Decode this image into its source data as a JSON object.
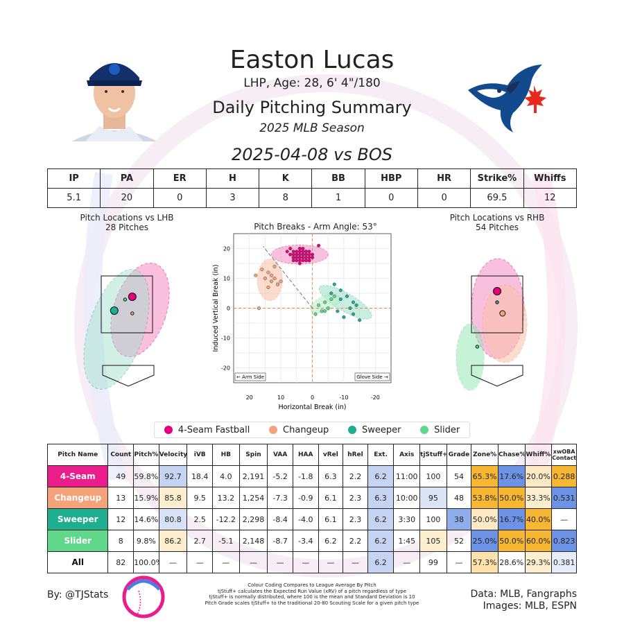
{
  "header": {
    "name": "Easton Lucas",
    "bio": "LHP, Age: 28, 6' 4\"/180",
    "title": "Daily Pitching Summary",
    "season": "2025 MLB Season",
    "game": "2025-04-08 vs BOS"
  },
  "summary": {
    "headers": [
      "IP",
      "PA",
      "ER",
      "H",
      "K",
      "BB",
      "HBP",
      "HR",
      "Strike%",
      "Whiffs"
    ],
    "values": [
      "5.1",
      "20",
      "0",
      "3",
      "8",
      "1",
      "0",
      "0",
      "69.5",
      "12"
    ]
  },
  "location_lhb": {
    "title": "Pitch Locations vs LHB",
    "subtitle": "28 Pitches"
  },
  "location_rhb": {
    "title": "Pitch Locations vs RHB",
    "subtitle": "54 Pitches"
  },
  "legend": {
    "items": [
      {
        "label": "4-Seam Fastball",
        "color": "#e6007e"
      },
      {
        "label": "Changeup",
        "color": "#f4a27a"
      },
      {
        "label": "Sweeper",
        "color": "#1fae8f"
      },
      {
        "label": "Slider",
        "color": "#5fd88a"
      }
    ]
  },
  "pitch_table": {
    "headers": [
      "Pitch Name",
      "Count",
      "Pitch%",
      "Velocity",
      "iVB",
      "HB",
      "Spin",
      "VAA",
      "HAA",
      "vRel",
      "hRel",
      "Ext.",
      "Axis",
      "tjStuff+",
      "Grade",
      "Zone%",
      "Chase%",
      "Whiff%",
      "xwOBA Contact"
    ],
    "rows": [
      {
        "name": "4-Seam",
        "name_color": "#e91e8c",
        "cells": [
          "49",
          "59.8%",
          "92.7",
          "18.4",
          "4.0",
          "2,191",
          "-5.2",
          "-1.8",
          "6.3",
          "2.2",
          "6.2",
          "11:00",
          "100",
          "54",
          "65.3%",
          "17.6%",
          "20.0%",
          "0.288"
        ],
        "fills": [
          "",
          "",
          "#c5d4f2",
          "",
          "",
          "",
          "",
          "",
          "",
          "",
          "#c5d4f2",
          "",
          "",
          "",
          "#f7b733",
          "#6c93e6",
          "#fde9c3",
          "#f7b733"
        ]
      },
      {
        "name": "Changeup",
        "name_color": "#f4a27a",
        "cells": [
          "13",
          "15.9%",
          "85.8",
          "9.5",
          "13.2",
          "1,254",
          "-7.3",
          "-0.9",
          "6.1",
          "2.3",
          "6.3",
          "10:00",
          "95",
          "48",
          "53.8%",
          "50.0%",
          "33.3%",
          "0.531"
        ],
        "fills": [
          "",
          "",
          "#fdeecf",
          "",
          "",
          "",
          "",
          "",
          "",
          "",
          "#c5d4f2",
          "",
          "#dbe4f7",
          "",
          "#f7b733",
          "#f7b733",
          "#fdeecf",
          "#6c93e6"
        ]
      },
      {
        "name": "Sweeper",
        "name_color": "#1fae8f",
        "cells": [
          "12",
          "14.6%",
          "80.8",
          "2.5",
          "-12.2",
          "2,298",
          "-8.4",
          "-4.0",
          "6.1",
          "2.3",
          "6.2",
          "3:30",
          "100",
          "38",
          "50.0%",
          "16.7%",
          "40.0%",
          "—"
        ],
        "fills": [
          "",
          "",
          "#d8e2f6",
          "",
          "",
          "",
          "",
          "",
          "",
          "",
          "#c5d4f2",
          "",
          "",
          "#8fadea",
          "#fde9c3",
          "#6c93e6",
          "#f7b733",
          ""
        ]
      },
      {
        "name": "Slider",
        "name_color": "#5fd88a",
        "cells": [
          "8",
          "9.8%",
          "86.2",
          "2.7",
          "-5.1",
          "2,148",
          "-8.7",
          "-3.4",
          "6.2",
          "2.2",
          "6.2",
          "1:45",
          "105",
          "52",
          "25.0%",
          "50.0%",
          "60.0%",
          "0.823"
        ],
        "fills": [
          "",
          "",
          "#fdeecf",
          "",
          "",
          "",
          "",
          "",
          "",
          "",
          "#c5d4f2",
          "",
          "#fdeecf",
          "",
          "#6c93e6",
          "#f7b733",
          "#f7b733",
          "#6c93e6"
        ]
      },
      {
        "name": "All",
        "name_color": "#ffffff",
        "cells": [
          "82",
          "100.0%",
          "—",
          "—",
          "—",
          "—",
          "—",
          "—",
          "—",
          "—",
          "6.2",
          "—",
          "99",
          "—",
          "57.3%",
          "28.6%",
          "29.3%",
          "0.381"
        ],
        "fills": [
          "",
          "",
          "",
          "",
          "",
          "",
          "",
          "",
          "",
          "",
          "#c5d4f2",
          "",
          "",
          "",
          "#fde2ac",
          "",
          "#fdeecf",
          "#e6ecf9"
        ]
      }
    ]
  },
  "footer": {
    "by": "By: @TJStats",
    "notes": [
      "Colour Coding Compares to League Average By Pitch",
      "tjStuff+ calculates the Expected Run Value (xRV) of a pitch regardless of type",
      "tjStuff+ is normally distributed, where 100 is the mean and Standard Deviation is 10",
      "Pitch Grade scales tjStuff+ to the traditional 20-80 Scouting Scale for a given pitch type"
    ],
    "data_source": "Data: MLB, Fangraphs",
    "images_source": "Images: MLB, ESPN"
  },
  "chart_data": {
    "type": "scatter",
    "title": "Pitch Breaks - Arm Angle: 53°",
    "xlabel": "Horizontal Break (in)",
    "ylabel": "Induced Vertical Break (in)",
    "xlim": [
      25,
      -25
    ],
    "ylim": [
      -25,
      25
    ],
    "x_ticks": [
      20,
      10,
      0,
      -10,
      -20
    ],
    "y_ticks": [
      20,
      10,
      0,
      -10,
      -20
    ],
    "annotations": {
      "left": "← Arm Side",
      "right": "Glove Side →"
    },
    "arm_angle": 53,
    "series": [
      {
        "name": "4-Seam Fastball",
        "color": "#e6007e",
        "x": [
          4,
          5,
          1,
          3,
          6,
          2,
          4,
          7,
          5,
          3,
          1,
          0,
          6,
          8,
          4,
          2,
          5,
          3,
          7,
          1,
          4,
          6,
          2,
          5,
          3,
          0,
          4,
          6,
          2,
          3,
          5,
          1,
          4,
          7,
          3,
          5,
          2,
          4,
          6,
          3,
          1,
          5,
          4,
          3,
          6,
          2,
          4,
          5,
          -2
        ],
        "y": [
          19,
          18,
          17,
          18,
          19,
          16,
          17,
          20,
          18,
          19,
          16,
          18,
          17,
          19,
          20,
          18,
          17,
          16,
          18,
          19,
          18,
          17,
          19,
          16,
          18,
          17,
          20,
          18,
          17,
          19,
          18,
          16,
          17,
          18,
          20,
          19,
          18,
          16,
          17,
          19,
          18,
          17,
          18,
          17,
          16,
          19,
          15,
          18,
          21
        ]
      },
      {
        "name": "Changeup",
        "color": "#f4a27a",
        "x": [
          18,
          14,
          12,
          11,
          13,
          14,
          10,
          12,
          13,
          15,
          11,
          16,
          17
        ],
        "y": [
          11,
          12,
          10,
          8,
          9,
          7,
          9,
          14,
          11,
          10,
          8,
          13,
          0
        ]
      },
      {
        "name": "Sweeper",
        "color": "#1fae8f",
        "x": [
          -6,
          -11,
          -9,
          -13,
          -12,
          -14,
          -8,
          -10,
          -13,
          -15,
          -9,
          -7
        ],
        "y": [
          5,
          4,
          3,
          2,
          0,
          1,
          -1,
          -3,
          -2,
          -4,
          6,
          8
        ]
      },
      {
        "name": "Slider",
        "color": "#5fd88a",
        "x": [
          -4,
          -5,
          -2,
          -3,
          -6,
          -1,
          -7,
          -4
        ],
        "y": [
          2,
          0,
          1,
          -1,
          3,
          -2,
          4,
          -1
        ]
      }
    ],
    "locations_lhb": [
      {
        "name": "4-Seam Fastball",
        "color": "#e6007e",
        "x": [
          0.3
        ],
        "y": [
          2.8
        ],
        "size": "large"
      },
      {
        "name": "Sweeper",
        "color": "#1fae8f",
        "x": [
          -0.7
        ],
        "y": [
          2.3
        ],
        "size": "large"
      },
      {
        "name": "Changeup",
        "color": "#f4a27a",
        "x": [
          0.3
        ],
        "y": [
          2.2
        ],
        "size": "small"
      },
      {
        "name": "Slider",
        "color": "#5fd88a",
        "x": [
          -0.1
        ],
        "y": [
          2.7
        ],
        "size": "small"
      }
    ],
    "locations_rhb": [
      {
        "name": "4-Seam Fastball",
        "color": "#e6007e",
        "x": [
          0.0
        ],
        "y": [
          3.0
        ],
        "size": "large"
      },
      {
        "name": "Changeup",
        "color": "#f4a27a",
        "x": [
          0.3
        ],
        "y": [
          2.2
        ],
        "size": "medium"
      },
      {
        "name": "Sweeper",
        "color": "#1fae8f",
        "x": [
          0.0
        ],
        "y": [
          2.6
        ],
        "size": "small"
      },
      {
        "name": "Slider",
        "color": "#5fd88a",
        "x": [
          -1.1
        ],
        "y": [
          1.0
        ],
        "size": "small"
      }
    ]
  }
}
